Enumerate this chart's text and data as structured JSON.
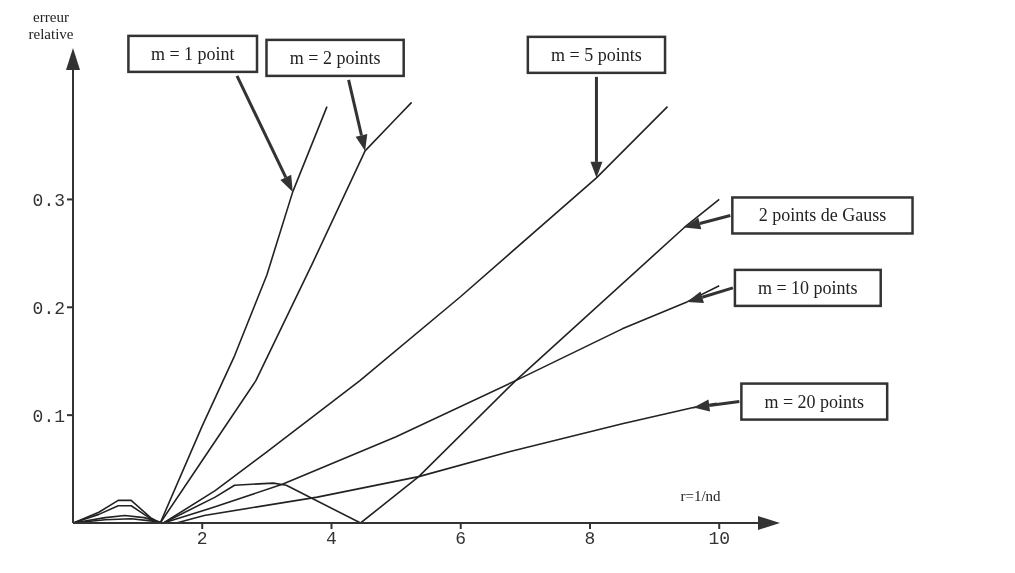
{
  "chart_data": {
    "type": "line",
    "xlabel": "r=1/nd",
    "ylabel": "erreur relative",
    "xlim": [
      0,
      10.6
    ],
    "ylim": [
      0,
      0.42
    ],
    "xticks": [
      2,
      4,
      6,
      8,
      10
    ],
    "yticks": [
      0.1,
      0.2,
      0.3
    ],
    "grid": false,
    "legend": false,
    "marker": "none",
    "line_style": "solid",
    "series": [
      {
        "name": "m = 1 point",
        "color": "#222222",
        "x": [
          0,
          0.4,
          0.7,
          0.9,
          1.2,
          1.35,
          2,
          2.5,
          3,
          3.4,
          3.93
        ],
        "values": [
          0,
          0.01,
          0.021,
          0.021,
          0.005,
          0,
          0.09,
          0.155,
          0.23,
          0.307,
          0.386
        ]
      },
      {
        "name": "m = 2 points",
        "color": "#222222",
        "x": [
          0,
          0.4,
          0.7,
          0.9,
          1.2,
          1.35,
          2,
          2.83,
          3.7,
          4.52,
          5.0,
          5.24
        ],
        "values": [
          0,
          0.008,
          0.016,
          0.016,
          0.004,
          0,
          0.058,
          0.132,
          0.24,
          0.345,
          0.375,
          0.39
        ]
      },
      {
        "name": "m = 5 points",
        "color": "#222222",
        "x": [
          0,
          0.5,
          0.8,
          1.1,
          1.4,
          2.2,
          3,
          4.44,
          6,
          8.1,
          9.2
        ],
        "values": [
          0,
          0.005,
          0.007,
          0.005,
          0,
          0.03,
          0.066,
          0.132,
          0.21,
          0.32,
          0.386
        ]
      },
      {
        "name": "2 points de Gauss",
        "color": "#222222",
        "x": [
          0,
          0.5,
          0.9,
          1.2,
          1.4,
          2.2,
          2.5,
          3.1,
          3.3,
          4.45,
          5.35,
          6.85,
          9.46,
          10
        ],
        "values": [
          0,
          0.003,
          0.004,
          0.002,
          0,
          0.024,
          0.035,
          0.037,
          0.035,
          0,
          0.043,
          0.132,
          0.274,
          0.3
        ]
      },
      {
        "name": "m = 10 points",
        "color": "#222222",
        "x": [
          0,
          1.4,
          2.2,
          3.24,
          5,
          6.85,
          8.5,
          9.5,
          10
        ],
        "values": [
          0,
          0,
          0.015,
          0.036,
          0.08,
          0.132,
          0.18,
          0.205,
          0.22
        ]
      },
      {
        "name": "m = 20 points",
        "color": "#222222",
        "x": [
          0,
          1.6,
          2.03,
          3.78,
          5.35,
          6.75,
          8.5,
          9.6,
          9.96
        ],
        "values": [
          0,
          0,
          0.007,
          0.024,
          0.043,
          0.066,
          0.092,
          0.107,
          0.111
        ]
      }
    ]
  }
}
